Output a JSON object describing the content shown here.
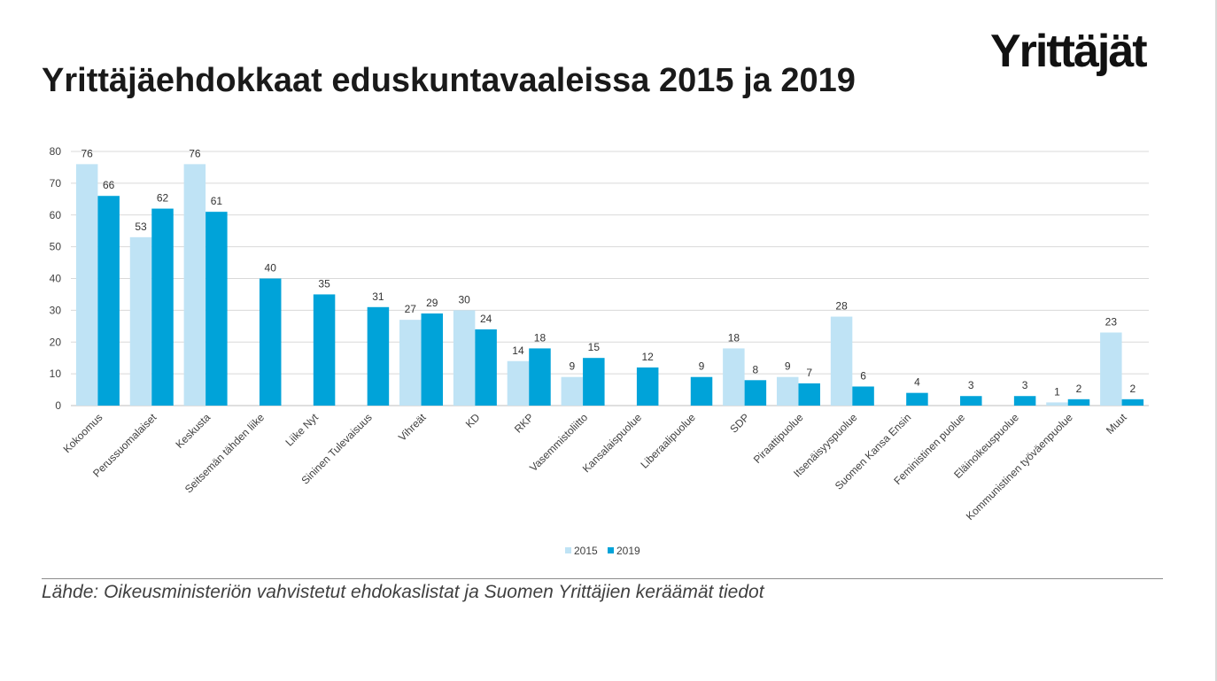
{
  "header": {
    "title": "Yrittäjäehdokkaat eduskuntavaaleissa 2015 ja 2019",
    "logo_text": "Yrittäjät"
  },
  "footer": {
    "source": "Lähde: Oikeusministeriön vahvistetut ehdokaslistat ja Suomen Yrittäjien keräämät tiedot"
  },
  "colors": {
    "series_2015": "#bfe3f5",
    "series_2019": "#00a3d9",
    "grid": "#d9d9d9"
  },
  "chart_data": {
    "type": "bar",
    "categories": [
      "Kokoomus",
      "Perussuomalaiset",
      "Keskusta",
      "Seitsemän tähden liike",
      "Liike Nyt",
      "Sininen Tulevaisuus",
      "Vihreät",
      "KD",
      "RKP",
      "Vasemmistoliitto",
      "Kansalaispuolue",
      "Liberaalipuolue",
      "SDP",
      "Piraattipuolue",
      "Itsenäisyyspuolue",
      "Suomen Kansa Ensin",
      "Feministinen puolue",
      "Eläinoikeuspuolue",
      "Kommunistinen työväenpuolue",
      "Muut"
    ],
    "series": [
      {
        "name": "2015",
        "values": [
          76,
          53,
          76,
          null,
          null,
          null,
          27,
          30,
          14,
          9,
          null,
          null,
          18,
          9,
          28,
          null,
          null,
          null,
          1,
          23
        ]
      },
      {
        "name": "2019",
        "values": [
          66,
          62,
          61,
          40,
          35,
          31,
          29,
          24,
          18,
          15,
          12,
          9,
          8,
          7,
          6,
          4,
          3,
          3,
          2,
          2
        ]
      }
    ],
    "ylim": [
      0,
      80
    ],
    "yticks": [
      0,
      10,
      20,
      30,
      40,
      50,
      60,
      70,
      80
    ],
    "grid": true,
    "legend": "bottom-center"
  }
}
